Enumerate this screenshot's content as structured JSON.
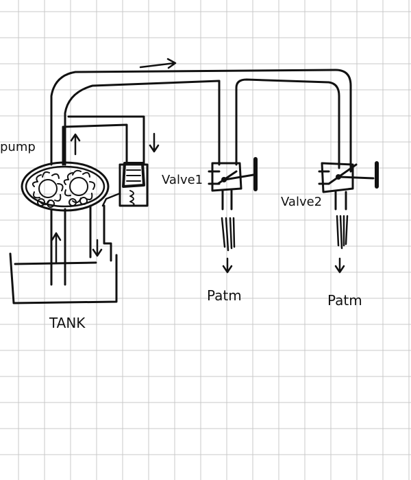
{
  "labels": {
    "pump": "pump",
    "valve1": "Valve1",
    "valve2": "Valve2",
    "patm1": "Patm",
    "patm2": "Patm",
    "tank": "TANK"
  },
  "colors": {
    "ink": "#111111",
    "grid": "#c8c8c8",
    "paper": "#ffffff"
  }
}
